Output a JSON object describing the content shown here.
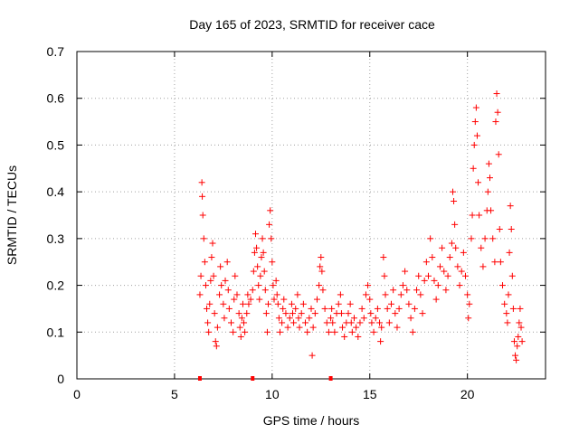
{
  "chart_data": {
    "type": "scatter",
    "title": "Day 165 of 2023, SRMTID for receiver cace",
    "xlabel": "GPS time / hours",
    "ylabel": "SRMTID / TECUs",
    "xlim": [
      0,
      24
    ],
    "ylim": [
      0,
      0.7
    ],
    "xticks": [
      0,
      5,
      10,
      15,
      20
    ],
    "yticks": [
      0,
      0.1,
      0.2,
      0.3,
      0.4,
      0.5,
      0.6,
      0.7
    ],
    "grid": true,
    "marker": "+",
    "color": "#ff0000",
    "series": [
      {
        "name": "SRMTID",
        "points": [
          [
            6.3,
            0.18
          ],
          [
            6.35,
            0.22
          ],
          [
            6.4,
            0.42
          ],
          [
            6.42,
            0.39
          ],
          [
            6.45,
            0.35
          ],
          [
            6.5,
            0.3
          ],
          [
            6.55,
            0.25
          ],
          [
            6.6,
            0.2
          ],
          [
            6.65,
            0.15
          ],
          [
            6.7,
            0.12
          ],
          [
            6.75,
            0.1
          ],
          [
            6.8,
            0.16
          ],
          [
            6.85,
            0.21
          ],
          [
            6.9,
            0.26
          ],
          [
            6.95,
            0.29
          ],
          [
            7.0,
            0.22
          ],
          [
            7.05,
            0.14
          ],
          [
            7.1,
            0.08
          ],
          [
            7.15,
            0.07
          ],
          [
            7.2,
            0.11
          ],
          [
            7.3,
            0.18
          ],
          [
            7.35,
            0.24
          ],
          [
            7.4,
            0.2
          ],
          [
            7.5,
            0.16
          ],
          [
            7.55,
            0.13
          ],
          [
            7.6,
            0.21
          ],
          [
            7.7,
            0.25
          ],
          [
            7.75,
            0.19
          ],
          [
            7.8,
            0.15
          ],
          [
            7.9,
            0.12
          ],
          [
            8.0,
            0.1
          ],
          [
            8.05,
            0.17
          ],
          [
            8.1,
            0.22
          ],
          [
            8.2,
            0.18
          ],
          [
            8.3,
            0.14
          ],
          [
            8.35,
            0.11
          ],
          [
            8.4,
            0.09
          ],
          [
            8.45,
            0.13
          ],
          [
            8.5,
            0.16
          ],
          [
            8.55,
            0.12
          ],
          [
            8.6,
            0.1
          ],
          [
            8.7,
            0.14
          ],
          [
            8.75,
            0.18
          ],
          [
            8.8,
            0.16
          ],
          [
            8.9,
            0.17
          ],
          [
            9.0,
            0.19
          ],
          [
            9.05,
            0.23
          ],
          [
            9.1,
            0.27
          ],
          [
            9.15,
            0.31
          ],
          [
            9.2,
            0.28
          ],
          [
            9.25,
            0.24
          ],
          [
            9.3,
            0.2
          ],
          [
            9.35,
            0.17
          ],
          [
            9.4,
            0.22
          ],
          [
            9.45,
            0.26
          ],
          [
            9.5,
            0.3
          ],
          [
            9.55,
            0.27
          ],
          [
            9.6,
            0.23
          ],
          [
            9.65,
            0.19
          ],
          [
            9.7,
            0.14
          ],
          [
            9.75,
            0.1
          ],
          [
            9.8,
            0.16
          ],
          [
            9.85,
            0.33
          ],
          [
            9.9,
            0.36
          ],
          [
            9.95,
            0.3
          ],
          [
            10.0,
            0.25
          ],
          [
            10.05,
            0.2
          ],
          [
            10.1,
            0.17
          ],
          [
            10.2,
            0.21
          ],
          [
            10.25,
            0.18
          ],
          [
            10.3,
            0.16
          ],
          [
            10.35,
            0.13
          ],
          [
            10.4,
            0.1
          ],
          [
            10.5,
            0.12
          ],
          [
            10.55,
            0.15
          ],
          [
            10.6,
            0.17
          ],
          [
            10.7,
            0.14
          ],
          [
            10.8,
            0.11
          ],
          [
            10.9,
            0.13
          ],
          [
            11.0,
            0.16
          ],
          [
            11.05,
            0.14
          ],
          [
            11.1,
            0.12
          ],
          [
            11.2,
            0.15
          ],
          [
            11.3,
            0.18
          ],
          [
            11.35,
            0.13
          ],
          [
            11.4,
            0.11
          ],
          [
            11.5,
            0.14
          ],
          [
            11.6,
            0.16
          ],
          [
            11.7,
            0.12
          ],
          [
            11.8,
            0.1
          ],
          [
            11.9,
            0.13
          ],
          [
            12.0,
            0.15
          ],
          [
            12.05,
            0.05
          ],
          [
            12.1,
            0.11
          ],
          [
            12.2,
            0.14
          ],
          [
            12.3,
            0.17
          ],
          [
            12.4,
            0.2
          ],
          [
            12.45,
            0.24
          ],
          [
            12.5,
            0.26
          ],
          [
            12.55,
            0.23
          ],
          [
            12.6,
            0.19
          ],
          [
            12.7,
            0.15
          ],
          [
            12.8,
            0.12
          ],
          [
            12.9,
            0.1
          ],
          [
            13.0,
            0.13
          ],
          [
            13.05,
            0.15
          ],
          [
            13.1,
            0.12
          ],
          [
            13.2,
            0.1
          ],
          [
            13.3,
            0.14
          ],
          [
            13.4,
            0.16
          ],
          [
            13.5,
            0.18
          ],
          [
            13.55,
            0.14
          ],
          [
            13.6,
            0.11
          ],
          [
            13.7,
            0.09
          ],
          [
            13.8,
            0.12
          ],
          [
            13.9,
            0.14
          ],
          [
            14.0,
            0.16
          ],
          [
            14.05,
            0.12
          ],
          [
            14.1,
            0.1
          ],
          [
            14.2,
            0.13
          ],
          [
            14.3,
            0.11
          ],
          [
            14.4,
            0.09
          ],
          [
            14.5,
            0.12
          ],
          [
            14.6,
            0.15
          ],
          [
            14.7,
            0.13
          ],
          [
            14.8,
            0.18
          ],
          [
            14.9,
            0.2
          ],
          [
            15.0,
            0.17
          ],
          [
            15.05,
            0.14
          ],
          [
            15.1,
            0.12
          ],
          [
            15.2,
            0.1
          ],
          [
            15.3,
            0.13
          ],
          [
            15.4,
            0.15
          ],
          [
            15.5,
            0.12
          ],
          [
            15.55,
            0.08
          ],
          [
            15.6,
            0.11
          ],
          [
            15.7,
            0.26
          ],
          [
            15.75,
            0.22
          ],
          [
            15.8,
            0.18
          ],
          [
            15.9,
            0.15
          ],
          [
            16.0,
            0.12
          ],
          [
            16.1,
            0.16
          ],
          [
            16.2,
            0.19
          ],
          [
            16.3,
            0.14
          ],
          [
            16.4,
            0.11
          ],
          [
            16.5,
            0.15
          ],
          [
            16.6,
            0.18
          ],
          [
            16.7,
            0.2
          ],
          [
            16.8,
            0.23
          ],
          [
            16.9,
            0.19
          ],
          [
            17.0,
            0.16
          ],
          [
            17.1,
            0.13
          ],
          [
            17.2,
            0.1
          ],
          [
            17.3,
            0.15
          ],
          [
            17.4,
            0.19
          ],
          [
            17.5,
            0.22
          ],
          [
            17.6,
            0.18
          ],
          [
            17.7,
            0.14
          ],
          [
            17.8,
            0.21
          ],
          [
            17.9,
            0.25
          ],
          [
            18.0,
            0.22
          ],
          [
            18.1,
            0.3
          ],
          [
            18.2,
            0.26
          ],
          [
            18.3,
            0.21
          ],
          [
            18.4,
            0.17
          ],
          [
            18.5,
            0.2
          ],
          [
            18.6,
            0.24
          ],
          [
            18.7,
            0.28
          ],
          [
            18.8,
            0.23
          ],
          [
            18.9,
            0.19
          ],
          [
            19.0,
            0.22
          ],
          [
            19.1,
            0.26
          ],
          [
            19.2,
            0.29
          ],
          [
            19.25,
            0.4
          ],
          [
            19.3,
            0.38
          ],
          [
            19.35,
            0.33
          ],
          [
            19.4,
            0.28
          ],
          [
            19.5,
            0.24
          ],
          [
            19.6,
            0.2
          ],
          [
            19.7,
            0.23
          ],
          [
            19.8,
            0.27
          ],
          [
            19.9,
            0.22
          ],
          [
            20.0,
            0.18
          ],
          [
            20.05,
            0.13
          ],
          [
            20.1,
            0.16
          ],
          [
            20.2,
            0.3
          ],
          [
            20.25,
            0.35
          ],
          [
            20.3,
            0.45
          ],
          [
            20.35,
            0.5
          ],
          [
            20.4,
            0.55
          ],
          [
            20.45,
            0.58
          ],
          [
            20.5,
            0.52
          ],
          [
            20.55,
            0.42
          ],
          [
            20.6,
            0.35
          ],
          [
            20.7,
            0.28
          ],
          [
            20.8,
            0.24
          ],
          [
            20.9,
            0.3
          ],
          [
            21.0,
            0.36
          ],
          [
            21.05,
            0.4
          ],
          [
            21.1,
            0.46
          ],
          [
            21.15,
            0.43
          ],
          [
            21.2,
            0.36
          ],
          [
            21.3,
            0.3
          ],
          [
            21.4,
            0.25
          ],
          [
            21.45,
            0.55
          ],
          [
            21.5,
            0.61
          ],
          [
            21.55,
            0.57
          ],
          [
            21.6,
            0.48
          ],
          [
            21.65,
            0.32
          ],
          [
            21.7,
            0.25
          ],
          [
            21.8,
            0.2
          ],
          [
            21.9,
            0.16
          ],
          [
            22.0,
            0.14
          ],
          [
            22.05,
            0.12
          ],
          [
            22.1,
            0.18
          ],
          [
            22.15,
            0.27
          ],
          [
            22.2,
            0.37
          ],
          [
            22.25,
            0.32
          ],
          [
            22.3,
            0.22
          ],
          [
            22.35,
            0.15
          ],
          [
            22.4,
            0.08
          ],
          [
            22.45,
            0.05
          ],
          [
            22.5,
            0.04
          ],
          [
            22.55,
            0.07
          ],
          [
            22.6,
            0.09
          ],
          [
            22.65,
            0.12
          ],
          [
            22.7,
            0.15
          ],
          [
            22.75,
            0.11
          ],
          [
            22.8,
            0.08
          ]
        ]
      }
    ],
    "baseline_markers": [
      6.3,
      9.0,
      13.0
    ]
  }
}
